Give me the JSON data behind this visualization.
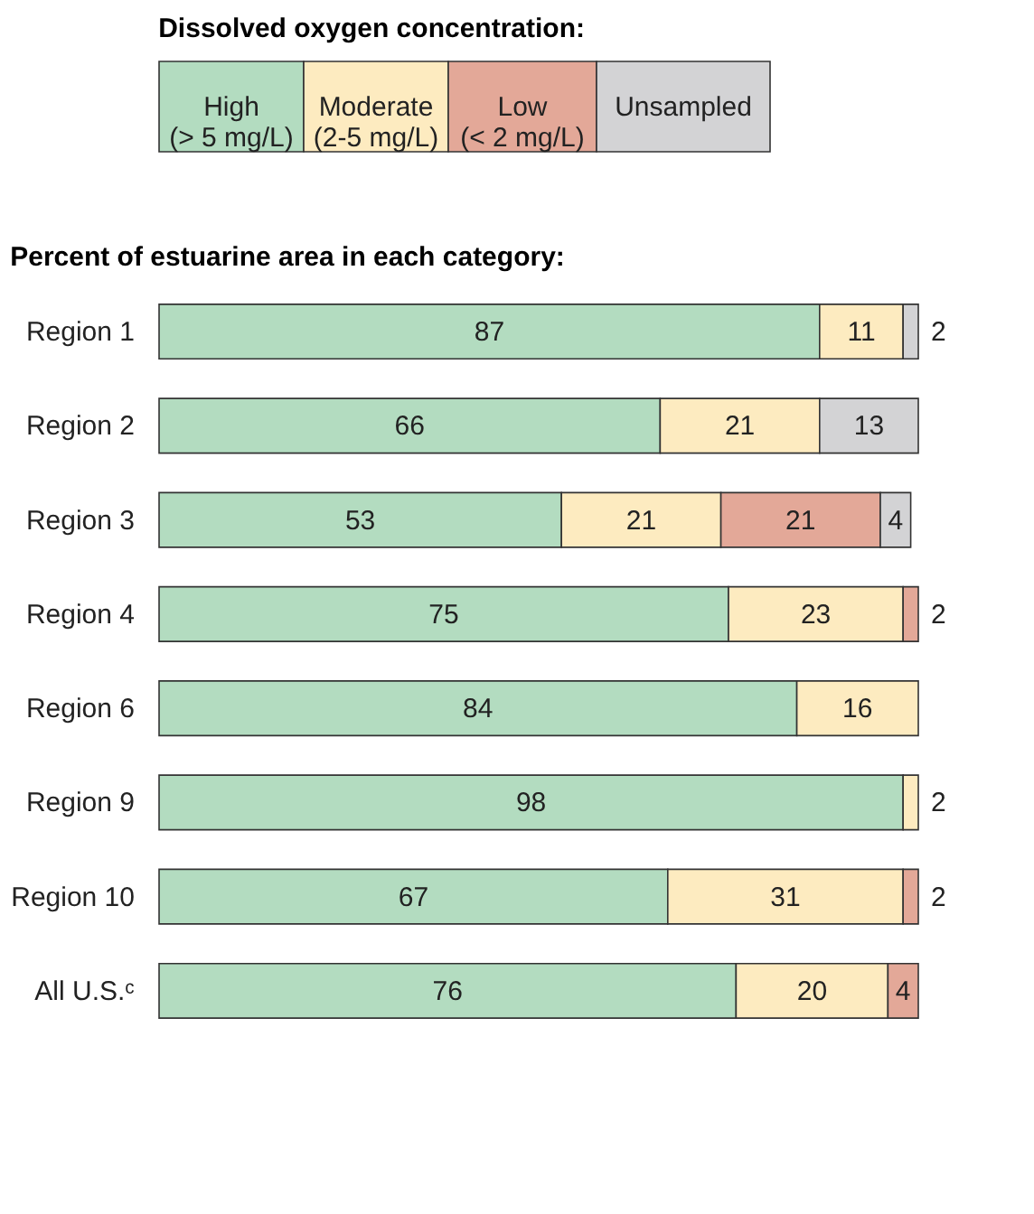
{
  "chart_data": {
    "type": "bar",
    "orientation": "horizontal",
    "stacked": true,
    "data_labels": true,
    "title": "Percent of estuarine area in each category:",
    "legend_title": "Dissolved oxygen concentration:",
    "legend": "top",
    "grid": false,
    "tick_labels": "y",
    "xlim": [
      0,
      100
    ],
    "categories": [
      "Region 1",
      "Region 2",
      "Region 3",
      "Region 4",
      "Region 6",
      "Region 9",
      "Region 10",
      "All U.S.ᶜ"
    ],
    "series": [
      {
        "name": "High\n(> 5 mg/L)",
        "color": "#b3dcc0",
        "values": [
          87,
          66,
          53,
          75,
          84,
          98,
          67,
          76
        ]
      },
      {
        "name": "Moderate\n(2-5 mg/L)",
        "color": "#fdebc0",
        "values": [
          11,
          21,
          21,
          23,
          16,
          2,
          31,
          20
        ]
      },
      {
        "name": "Low\n(< 2 mg/L)",
        "color": "#e3a898",
        "values": [
          null,
          null,
          21,
          2,
          null,
          null,
          2,
          4
        ]
      },
      {
        "name": "Unsampled",
        "color": "#d3d3d5",
        "values": [
          2,
          13,
          4,
          null,
          null,
          null,
          null,
          null
        ]
      }
    ]
  }
}
